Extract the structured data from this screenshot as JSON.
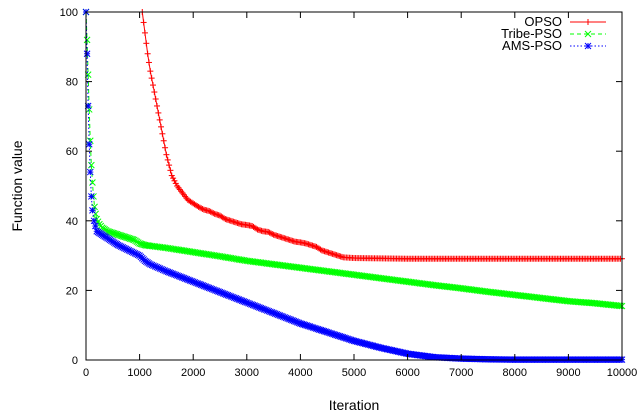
{
  "chart_data": {
    "type": "line",
    "title": "",
    "xlabel": "Iteration",
    "ylabel": "Function value",
    "xlim": [
      0,
      10000
    ],
    "ylim": [
      0,
      100
    ],
    "xticks": [
      0,
      1000,
      2000,
      3000,
      4000,
      5000,
      6000,
      7000,
      8000,
      9000,
      10000
    ],
    "yticks": [
      0,
      20,
      40,
      60,
      80,
      100
    ],
    "xtick_labels": [
      "0",
      "1000",
      "2000",
      "3000",
      "4000",
      "5000",
      "6000",
      "7000",
      "8000",
      "9000",
      "10000"
    ],
    "ytick_labels": [
      "0",
      "20",
      "40",
      "60",
      "80",
      "100"
    ],
    "grid": false,
    "legend_position": "top-right",
    "series": [
      {
        "name": "OPSO",
        "color": "#ff0000",
        "marker": "plus",
        "line": "solid",
        "x": [
          1050,
          1100,
          1150,
          1200,
          1250,
          1300,
          1350,
          1400,
          1450,
          1500,
          1550,
          1600,
          1700,
          1800,
          1900,
          2000,
          2100,
          2200,
          2300,
          2400,
          2500,
          2600,
          2700,
          2800,
          2900,
          3000,
          3100,
          3200,
          3300,
          3400,
          3500,
          3600,
          3700,
          3800,
          3900,
          4000,
          4100,
          4200,
          4300,
          4400,
          4500,
          4600,
          4700,
          4800,
          5000,
          5500,
          6000,
          6500,
          7000,
          7500,
          8000,
          8500,
          9000,
          9500,
          10000
        ],
        "values": [
          100,
          94,
          88,
          83,
          79,
          75,
          71,
          67,
          63,
          59,
          56,
          53,
          50,
          48,
          46,
          45,
          44,
          43.2,
          42.8,
          42,
          41.5,
          40.5,
          40,
          39.5,
          39,
          38.8,
          38.5,
          37.5,
          37,
          36.8,
          36,
          35.5,
          35,
          34.5,
          34,
          33.8,
          33.5,
          33,
          32.5,
          31.5,
          31,
          30.5,
          30,
          29.5,
          29.3,
          29.2,
          29.1,
          29.1,
          29.1,
          29.1,
          29.1,
          29.1,
          29.1,
          29.1,
          29.1
        ]
      },
      {
        "name": "Tribe-PSO",
        "color": "#00ff00",
        "marker": "cross",
        "line": "dashed",
        "x": [
          0,
          20,
          40,
          60,
          80,
          100,
          120,
          140,
          160,
          180,
          200,
          250,
          300,
          350,
          400,
          500,
          600,
          700,
          800,
          900,
          1000,
          1100,
          1200,
          1500,
          2000,
          2500,
          3000,
          3500,
          4000,
          4500,
          5000,
          5500,
          6000,
          6500,
          7000,
          7500,
          8000,
          8500,
          9000,
          9500,
          10000
        ],
        "values": [
          100,
          92,
          82,
          72,
          63,
          56,
          51,
          47,
          44,
          42,
          40.5,
          39,
          38,
          37.5,
          37,
          36.5,
          36,
          35.5,
          35,
          34.5,
          33.5,
          33,
          32.8,
          32.2,
          31,
          29.8,
          28.5,
          27.5,
          26.5,
          25.5,
          24.5,
          23.5,
          22.5,
          21.5,
          20.6,
          19.6,
          18.7,
          17.8,
          16.9,
          16.3,
          15.5
        ]
      },
      {
        "name": "AMS-PSO",
        "color": "#0000ff",
        "marker": "star",
        "line": "dotted",
        "x": [
          0,
          20,
          40,
          60,
          80,
          100,
          120,
          150,
          200,
          300,
          400,
          500,
          600,
          800,
          1000,
          1100,
          1200,
          1500,
          2000,
          2500,
          3000,
          3500,
          4000,
          4500,
          5000,
          5500,
          6000,
          6500,
          7000,
          7500,
          8000,
          8500,
          9000,
          9500,
          10000
        ],
        "values": [
          100,
          88,
          73,
          62,
          54,
          47,
          43,
          40,
          37,
          36,
          35,
          34,
          33,
          31.5,
          30,
          28.5,
          27.5,
          25.5,
          22.5,
          19.5,
          16.5,
          13.5,
          10.5,
          8,
          5.5,
          3.5,
          1.8,
          0.8,
          0.4,
          0.2,
          0.1,
          0.1,
          0.1,
          0.1,
          0.1
        ]
      }
    ]
  }
}
